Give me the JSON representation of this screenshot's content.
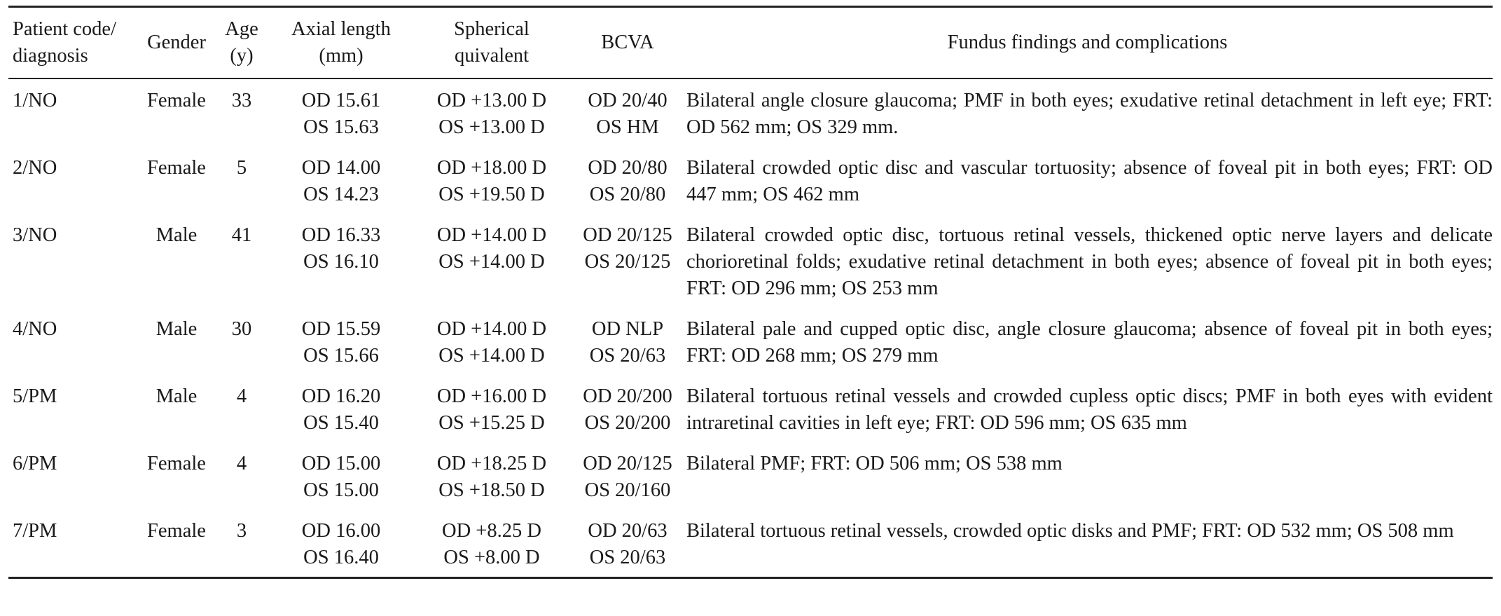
{
  "headers": [
    {
      "line1": "Patient code/",
      "line2": "diagnosis"
    },
    {
      "line1": "Gender",
      "line2": ""
    },
    {
      "line1": "Age",
      "line2": "(y)"
    },
    {
      "line1": "Axial length",
      "line2": "(mm)"
    },
    {
      "line1": "Spherical",
      "line2": "quivalent"
    },
    {
      "line1": "BCVA",
      "line2": ""
    },
    {
      "line1": "Fundus findings and complications",
      "line2": ""
    }
  ],
  "rows": [
    {
      "code": "1/NO",
      "gender": "Female",
      "age": "33",
      "axial": [
        "OD 15.61",
        "OS 15.63"
      ],
      "spherical": [
        "OD +13.00 D",
        "OS +13.00 D"
      ],
      "bcva": [
        "OD 20/40",
        "OS HM"
      ],
      "findings": "Bilateral angle closure glaucoma; PMF in both eyes; exudative retinal detachment in left eye; FRT: OD 562 mm; OS 329 mm."
    },
    {
      "code": "2/NO",
      "gender": "Female",
      "age": "5",
      "axial": [
        "OD 14.00",
        "OS 14.23"
      ],
      "spherical": [
        "OD +18.00 D",
        "OS +19.50 D"
      ],
      "bcva": [
        "OD 20/80",
        "OS 20/80"
      ],
      "findings": "Bilateral crowded optic disc and vascular tortuosity; absence of foveal pit in both eyes; FRT: OD 447 mm; OS 462 mm"
    },
    {
      "code": "3/NO",
      "gender": "Male",
      "age": "41",
      "axial": [
        "OD 16.33",
        "OS 16.10"
      ],
      "spherical": [
        "OD +14.00 D",
        "OS +14.00 D"
      ],
      "bcva": [
        "OD 20/125",
        "OS 20/125"
      ],
      "findings": "Bilateral crowded optic disc, tortuous retinal vessels, thickened optic nerve layers and delicate chorioretinal folds; exudative retinal detachment in both eyes; absence of foveal pit in both eyes; FRT: OD 296 mm; OS 253 mm"
    },
    {
      "code": "4/NO",
      "gender": "Male",
      "age": "30",
      "axial": [
        "OD 15.59",
        "OS 15.66"
      ],
      "spherical": [
        "OD +14.00 D",
        "OS +14.00 D"
      ],
      "bcva": [
        "OD NLP",
        "OS 20/63"
      ],
      "findings": "Bilateral pale and cupped optic disc, angle closure glaucoma; absence of foveal pit in both eyes; FRT: OD 268 mm; OS 279 mm"
    },
    {
      "code": "5/PM",
      "gender": "Male",
      "age": "4",
      "axial": [
        "OD 16.20",
        "OS 15.40"
      ],
      "spherical": [
        "OD +16.00 D",
        "OS +15.25 D"
      ],
      "bcva": [
        "OD 20/200",
        "OS 20/200"
      ],
      "findings": "Bilateral tortuous retinal vessels and crowded cupless optic discs; PMF in both eyes with evident intraretinal cavities in left eye; FRT: OD 596 mm; OS 635 mm"
    },
    {
      "code": "6/PM",
      "gender": "Female",
      "age": "4",
      "axial": [
        "OD 15.00",
        "OS 15.00"
      ],
      "spherical": [
        "OD +18.25 D",
        "OS +18.50 D"
      ],
      "bcva": [
        "OD 20/125",
        "OS 20/160"
      ],
      "findings": "Bilateral PMF; FRT: OD 506 mm; OS 538 mm"
    },
    {
      "code": "7/PM",
      "gender": "Female",
      "age": "3",
      "axial": [
        "OD 16.00",
        "OS 16.40"
      ],
      "spherical": [
        "OD +8.25 D",
        "OS +8.00 D"
      ],
      "bcva": [
        "OD 20/63",
        "OS 20/63"
      ],
      "findings": "Bilateral tortuous retinal vessels, crowded optic disks and PMF; FRT: OD 532 mm; OS 508 mm"
    }
  ]
}
